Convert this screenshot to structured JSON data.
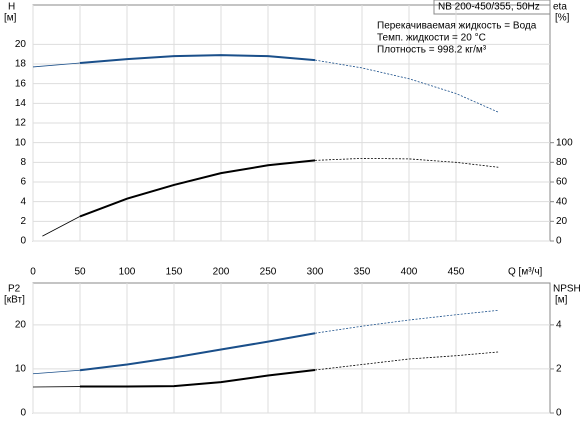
{
  "chart_data": [
    {
      "type": "line",
      "title": "NB 200-450/355, 50Hz",
      "annotations": [
        "Перекачиваемая жидкость = Вода",
        "Темп. жидкости = 20 °C",
        "Плотность = 998.2 кг/м³"
      ],
      "xlabel": "Q [м³/ч]",
      "ylabel": "H",
      "yunit": "[м]",
      "y2label": "eta",
      "y2unit": "[%]",
      "xlim": [
        0,
        550
      ],
      "xticks": [
        0,
        50,
        100,
        150,
        200,
        250,
        300,
        350,
        400,
        450
      ],
      "xtick_labels": true,
      "ylim": [
        0,
        24
      ],
      "yticks": [
        0,
        2,
        4,
        6,
        8,
        10,
        12,
        14,
        16,
        18,
        20
      ],
      "y2lim": [
        0,
        240
      ],
      "y2ticks": [
        0,
        20,
        40,
        60,
        80,
        100
      ],
      "grid": true,
      "series": [
        {
          "x": [
            0,
            50
          ],
          "values": [
            17.7,
            18.1
          ],
          "color": "#1a4f8a",
          "style": "thin"
        },
        {
          "x": [
            50,
            100,
            150,
            200,
            250,
            300
          ],
          "values": [
            18.1,
            18.5,
            18.8,
            18.9,
            18.8,
            18.4
          ],
          "color": "#1a4f8a",
          "style": "thick"
        },
        {
          "x": [
            300,
            350,
            400,
            450,
            495
          ],
          "values": [
            18.4,
            17.6,
            16.5,
            15.0,
            13.1
          ],
          "color": "#1a4f8a",
          "style": "dashed"
        },
        {
          "x": [
            10,
            50
          ],
          "values": [
            5,
            25
          ],
          "color": "#000000",
          "style": "thin",
          "axis": "y2"
        },
        {
          "x": [
            50,
            100,
            150,
            200,
            250,
            300
          ],
          "values": [
            25,
            43,
            57,
            69,
            77,
            82
          ],
          "color": "#000000",
          "style": "thick",
          "axis": "y2"
        },
        {
          "x": [
            300,
            350,
            400,
            450,
            495
          ],
          "values": [
            82,
            84,
            83.5,
            80,
            75
          ],
          "color": "#000000",
          "style": "dashed",
          "axis": "y2"
        }
      ]
    },
    {
      "type": "line",
      "ylabel": "P2",
      "yunit": "[кВт]",
      "y2label": "NPSH",
      "y2unit": "[м]",
      "xlim": [
        0,
        550
      ],
      "xticks": [
        0,
        50,
        100,
        150,
        200,
        250,
        300,
        350,
        400,
        450
      ],
      "xtick_labels": false,
      "ylim": [
        0,
        29.5
      ],
      "yticks": [
        0,
        10,
        20
      ],
      "y2lim": [
        0,
        5.9
      ],
      "y2ticks": [
        0,
        2,
        4
      ],
      "grid": true,
      "series": [
        {
          "x": [
            0,
            50
          ],
          "values": [
            8.9,
            9.7
          ],
          "color": "#1a4f8a",
          "style": "thin"
        },
        {
          "x": [
            50,
            100,
            150,
            200,
            250,
            300
          ],
          "values": [
            9.7,
            11.0,
            12.6,
            14.4,
            16.2,
            18.1
          ],
          "color": "#1a4f8a",
          "style": "thick"
        },
        {
          "x": [
            300,
            350,
            400,
            450,
            495
          ],
          "values": [
            18.1,
            19.7,
            21.1,
            22.3,
            23.3
          ],
          "color": "#1a4f8a",
          "style": "dashed"
        },
        {
          "x": [
            0,
            50
          ],
          "values": [
            1.18,
            1.2
          ],
          "color": "#000000",
          "style": "thin",
          "axis": "y2"
        },
        {
          "x": [
            50,
            100,
            150,
            200,
            250,
            300
          ],
          "values": [
            1.2,
            1.2,
            1.22,
            1.4,
            1.7,
            1.95
          ],
          "color": "#000000",
          "style": "thick",
          "axis": "y2"
        },
        {
          "x": [
            300,
            350,
            400,
            450,
            495
          ],
          "values": [
            1.95,
            2.2,
            2.45,
            2.6,
            2.77
          ],
          "color": "#000000",
          "style": "dashed",
          "axis": "y2"
        }
      ]
    }
  ]
}
